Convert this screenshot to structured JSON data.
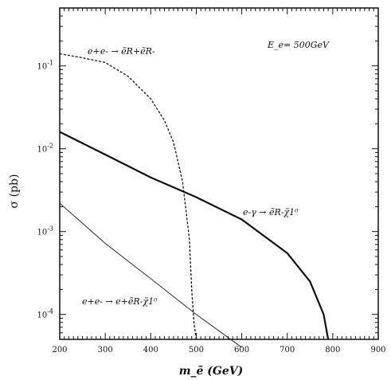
{
  "chart_data": {
    "type": "line",
    "title": "",
    "xlabel": "m_ẽ (GeV)",
    "ylabel": "σ (pb)",
    "xlim": [
      200,
      900
    ],
    "ylim": [
      5e-05,
      0.5
    ],
    "yscale": "log",
    "grid": false,
    "x_tick_labels": [
      "200",
      "300",
      "400",
      "500",
      "600",
      "700",
      "800",
      "900"
    ],
    "y_tick_labels": [
      {
        "value": 0.1,
        "base": "10",
        "exp": "-1"
      },
      {
        "value": 0.01,
        "base": "10",
        "exp": "-2"
      },
      {
        "value": 0.001,
        "base": "10",
        "exp": "-3"
      },
      {
        "value": 0.0001,
        "base": "10",
        "exp": "-4"
      }
    ],
    "energy_annotation": "E_e= 500GeV",
    "series": [
      {
        "label": "e+e- → ẽR+ẽR-",
        "style": "dashed",
        "x": [
          200,
          250,
          300,
          350,
          400,
          430,
          450,
          470,
          485,
          490,
          495,
          500
        ],
        "y": [
          0.14,
          0.125,
          0.11,
          0.075,
          0.04,
          0.022,
          0.012,
          0.004,
          0.0008,
          0.0002,
          8e-05,
          5e-05
        ]
      },
      {
        "label": "e-γ → ẽR-χ̃1⁰",
        "style": "solid-thick",
        "x": [
          200,
          300,
          400,
          500,
          600,
          700,
          750,
          780,
          790
        ],
        "y": [
          0.016,
          0.0085,
          0.0045,
          0.0026,
          0.0014,
          0.00055,
          0.00025,
          0.0001,
          5e-05
        ]
      },
      {
        "label": "e+e- → e+ẽR-χ̃1⁰",
        "style": "solid-thin",
        "x": [
          200,
          300,
          400,
          500,
          600
        ],
        "y": [
          0.0022,
          0.00072,
          0.00027,
          0.0001,
          4e-05
        ]
      }
    ]
  }
}
